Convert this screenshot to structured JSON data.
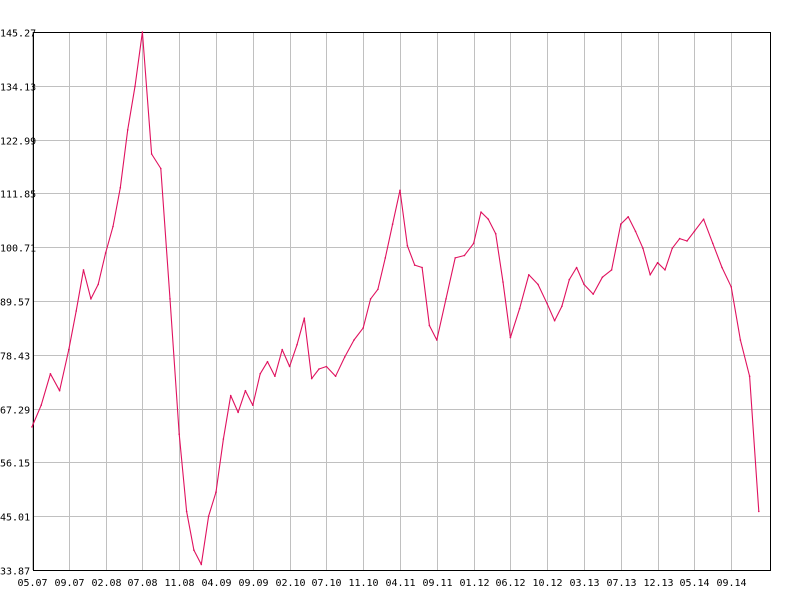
{
  "chart_data": {
    "type": "line",
    "title": "",
    "xlabel": "",
    "ylabel": "",
    "grid": true,
    "legend": "none",
    "line_color": "#e0125f",
    "grid_color": "#c0c0c0",
    "ylim": [
      33.87,
      145.27
    ],
    "y_ticks": [
      "33.87",
      "45.01",
      "56.15",
      "67.29",
      "78.43",
      "89.57",
      "100.71",
      "111.85",
      "122.99",
      "134.13",
      "145.27"
    ],
    "x_range": [
      "2007-05",
      "2014-12"
    ],
    "x_ticks": [
      {
        "label": "05.07",
        "date": "2007-05"
      },
      {
        "label": "09.07",
        "date": "2007-09"
      },
      {
        "label": "02.08",
        "date": "2008-02"
      },
      {
        "label": "07.08",
        "date": "2008-07"
      },
      {
        "label": "11.08",
        "date": "2008-11"
      },
      {
        "label": "04.09",
        "date": "2009-04"
      },
      {
        "label": "09.09",
        "date": "2009-09"
      },
      {
        "label": "02.10",
        "date": "2010-02"
      },
      {
        "label": "07.10",
        "date": "2010-07"
      },
      {
        "label": "11.10",
        "date": "2010-11"
      },
      {
        "label": "04.11",
        "date": "2011-04"
      },
      {
        "label": "09.11",
        "date": "2011-09"
      },
      {
        "label": "01.12",
        "date": "2012-01"
      },
      {
        "label": "06.12",
        "date": "2012-06"
      },
      {
        "label": "10.12",
        "date": "2012-10"
      },
      {
        "label": "03.13",
        "date": "2013-03"
      },
      {
        "label": "07.13",
        "date": "2013-07"
      },
      {
        "label": "12.13",
        "date": "2013-12"
      },
      {
        "label": "05.14",
        "date": "2014-05"
      },
      {
        "label": "09.14",
        "date": "2014-09"
      }
    ],
    "series": [
      {
        "name": "",
        "points": [
          [
            "2007-05",
            63.5
          ],
          [
            "2007-06",
            68.0
          ],
          [
            "2007-07",
            74.5
          ],
          [
            "2007-08",
            71.0
          ],
          [
            "2007-09",
            79.5
          ],
          [
            "2007-10",
            87.5
          ],
          [
            "2007-11",
            96.0
          ],
          [
            "2007-12",
            90.0
          ],
          [
            "2008-01",
            93.0
          ],
          [
            "2008-02",
            99.5
          ],
          [
            "2008-03",
            105.0
          ],
          [
            "2008-04",
            113.0
          ],
          [
            "2008-05",
            125.0
          ],
          [
            "2008-06",
            134.0
          ],
          [
            "2008-07",
            145.27
          ],
          [
            "2008-08",
            120.0
          ],
          [
            "2008-09",
            117.0
          ],
          [
            "2008-10",
            90.0
          ],
          [
            "2008-11",
            62.0
          ],
          [
            "2008-12",
            46.0
          ],
          [
            "2009-01",
            38.0
          ],
          [
            "2009-02",
            35.0
          ],
          [
            "2009-03",
            45.0
          ],
          [
            "2009-04",
            50.0
          ],
          [
            "2009-05",
            61.0
          ],
          [
            "2009-06",
            70.0
          ],
          [
            "2009-07",
            66.5
          ],
          [
            "2009-08",
            71.0
          ],
          [
            "2009-09",
            68.0
          ],
          [
            "2009-10",
            74.5
          ],
          [
            "2009-11",
            77.0
          ],
          [
            "2009-12",
            74.0
          ],
          [
            "2010-01",
            79.5
          ],
          [
            "2010-02",
            76.0
          ],
          [
            "2010-03",
            80.5
          ],
          [
            "2010-04",
            86.0
          ],
          [
            "2010-05",
            73.5
          ],
          [
            "2010-06",
            75.5
          ],
          [
            "2010-07",
            76.0
          ],
          [
            "2010-08",
            74.0
          ],
          [
            "2010-09",
            78.0
          ],
          [
            "2010-10",
            81.5
          ],
          [
            "2010-11",
            84.0
          ],
          [
            "2010-12",
            90.0
          ],
          [
            "2011-01",
            92.0
          ],
          [
            "2011-02",
            98.5
          ],
          [
            "2011-03",
            105.5
          ],
          [
            "2011-04",
            112.5
          ],
          [
            "2011-05",
            101.0
          ],
          [
            "2011-06",
            97.0
          ],
          [
            "2011-07",
            96.5
          ],
          [
            "2011-08",
            84.5
          ],
          [
            "2011-09",
            81.5
          ],
          [
            "2011-10",
            90.0
          ],
          [
            "2011-11",
            98.5
          ],
          [
            "2011-12",
            99.0
          ],
          [
            "2012-01",
            101.5
          ],
          [
            "2012-02",
            108.0
          ],
          [
            "2012-03",
            106.5
          ],
          [
            "2012-04",
            103.5
          ],
          [
            "2012-05",
            93.5
          ],
          [
            "2012-06",
            82.0
          ],
          [
            "2012-07",
            88.0
          ],
          [
            "2012-08",
            95.0
          ],
          [
            "2012-09",
            93.0
          ],
          [
            "2012-10",
            89.0
          ],
          [
            "2012-11",
            85.5
          ],
          [
            "2012-12",
            88.5
          ],
          [
            "2013-01",
            94.0
          ],
          [
            "2013-02",
            96.5
          ],
          [
            "2013-03",
            93.0
          ],
          [
            "2013-04",
            91.0
          ],
          [
            "2013-05",
            94.5
          ],
          [
            "2013-06",
            96.0
          ],
          [
            "2013-07",
            105.5
          ],
          [
            "2013-08",
            107.0
          ],
          [
            "2013-09",
            104.0
          ],
          [
            "2013-10",
            100.5
          ],
          [
            "2013-11",
            95.0
          ],
          [
            "2013-12",
            97.5
          ],
          [
            "2014-01",
            96.0
          ],
          [
            "2014-02",
            100.5
          ],
          [
            "2014-03",
            102.5
          ],
          [
            "2014-04",
            102.0
          ],
          [
            "2014-05",
            104.0
          ],
          [
            "2014-06",
            106.5
          ],
          [
            "2014-07",
            101.5
          ],
          [
            "2014-08",
            96.5
          ],
          [
            "2014-09",
            92.5
          ],
          [
            "2014-10",
            81.5
          ],
          [
            "2014-11",
            74.0
          ],
          [
            "2014-12",
            46.0
          ]
        ]
      }
    ]
  }
}
